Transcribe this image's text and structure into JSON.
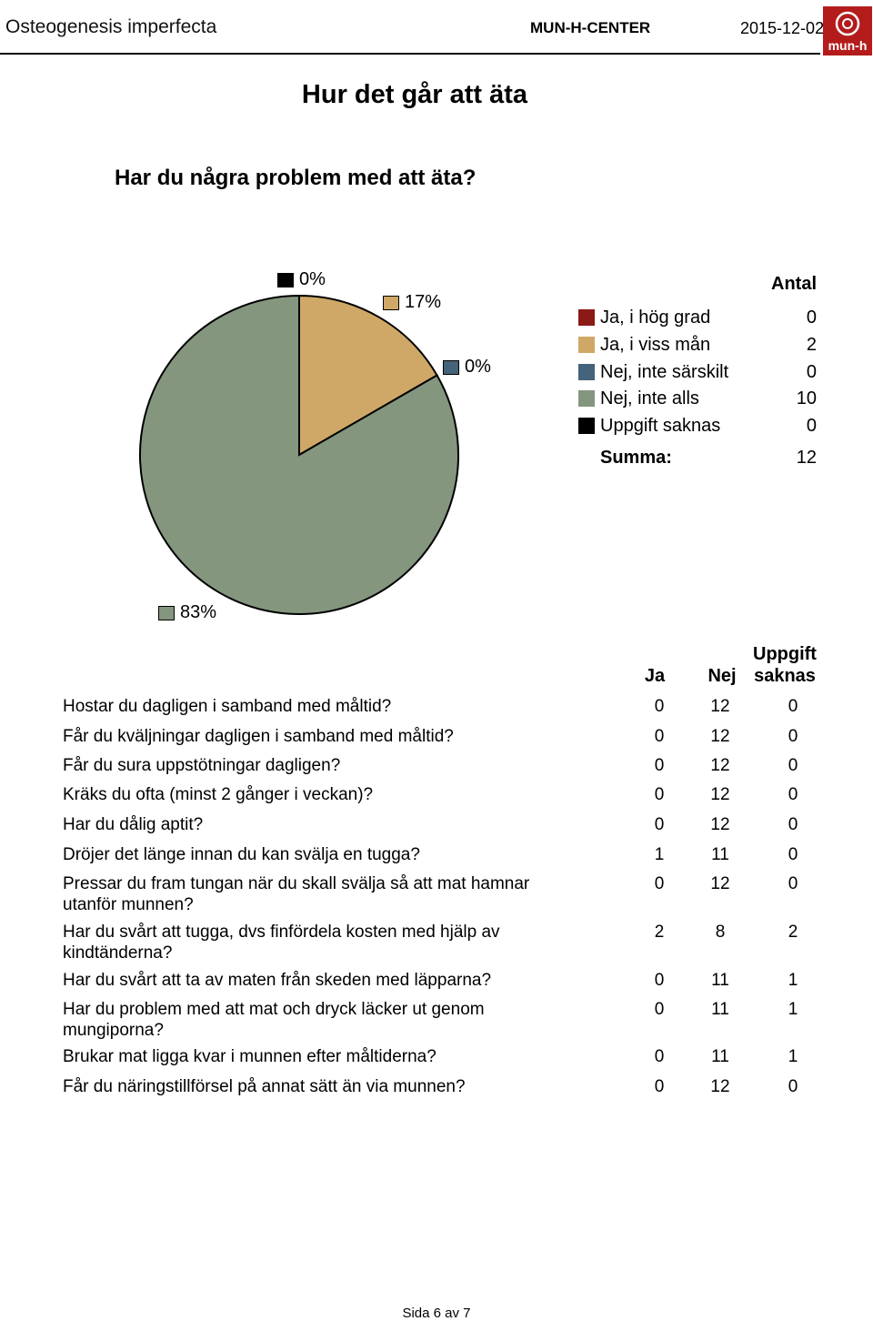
{
  "header": {
    "title": "Osteogenesis imperfecta",
    "center": "MUN-H-CENTER",
    "date": "2015-12-02",
    "logo_text": "mun-h"
  },
  "page_title": "Hur det går att äta",
  "question": "Har du några problem med att äta?",
  "chart_data": {
    "type": "pie",
    "categories": [
      "Ja, i hög grad",
      "Ja, i viss mån",
      "Nej, inte särskilt",
      "Nej, inte alls",
      "Uppgift saknas"
    ],
    "values": [
      0,
      2,
      0,
      10,
      0
    ],
    "percent_labels": [
      "0%",
      "17%",
      "0%",
      "83%"
    ],
    "colors": [
      "#8b1a17",
      "#cfa867",
      "#45637a",
      "#84967e",
      "#000000"
    ],
    "legend_title": "Antal",
    "sum_label": "Summa:",
    "sum_value": "12"
  },
  "table": {
    "columns": [
      "Ja",
      "Nej",
      "Uppgift",
      "saknas"
    ],
    "rows": [
      {
        "q": "Hostar du dagligen i samband med måltid?",
        "ja": "0",
        "nej": "12",
        "saknas": "0"
      },
      {
        "q": "Får du kväljningar dagligen i samband med måltid?",
        "ja": "0",
        "nej": "12",
        "saknas": "0"
      },
      {
        "q": "Får du sura uppstötningar dagligen?",
        "ja": "0",
        "nej": "12",
        "saknas": "0"
      },
      {
        "q": "Kräks du ofta (minst 2 gånger i veckan)?",
        "ja": "0",
        "nej": "12",
        "saknas": "0"
      },
      {
        "q": "Har du dålig aptit?",
        "ja": "0",
        "nej": "12",
        "saknas": "0"
      },
      {
        "q": "Dröjer det länge innan du kan svälja en tugga?",
        "ja": "1",
        "nej": "11",
        "saknas": "0"
      },
      {
        "q": "Pressar du fram tungan när du skall svälja så att mat hamnar utanför munnen?",
        "ja": "0",
        "nej": "12",
        "saknas": "0"
      },
      {
        "q": "Har du svårt att tugga, dvs finfördela kosten med hjälp av kindtänderna?",
        "ja": "2",
        "nej": "8",
        "saknas": "2"
      },
      {
        "q": "Har du svårt att ta av maten från skeden med läpparna?",
        "ja": "0",
        "nej": "11",
        "saknas": "1"
      },
      {
        "q": "Har du problem med att mat och dryck läcker ut genom mungiporna?",
        "ja": "0",
        "nej": "11",
        "saknas": "1"
      },
      {
        "q": "Brukar mat ligga kvar i munnen efter måltiderna?",
        "ja": "0",
        "nej": "11",
        "saknas": "1"
      },
      {
        "q": "Får du näringstillförsel på annat sätt än via munnen?",
        "ja": "0",
        "nej": "12",
        "saknas": "0"
      }
    ]
  },
  "footer": "Sida 6 av 7"
}
